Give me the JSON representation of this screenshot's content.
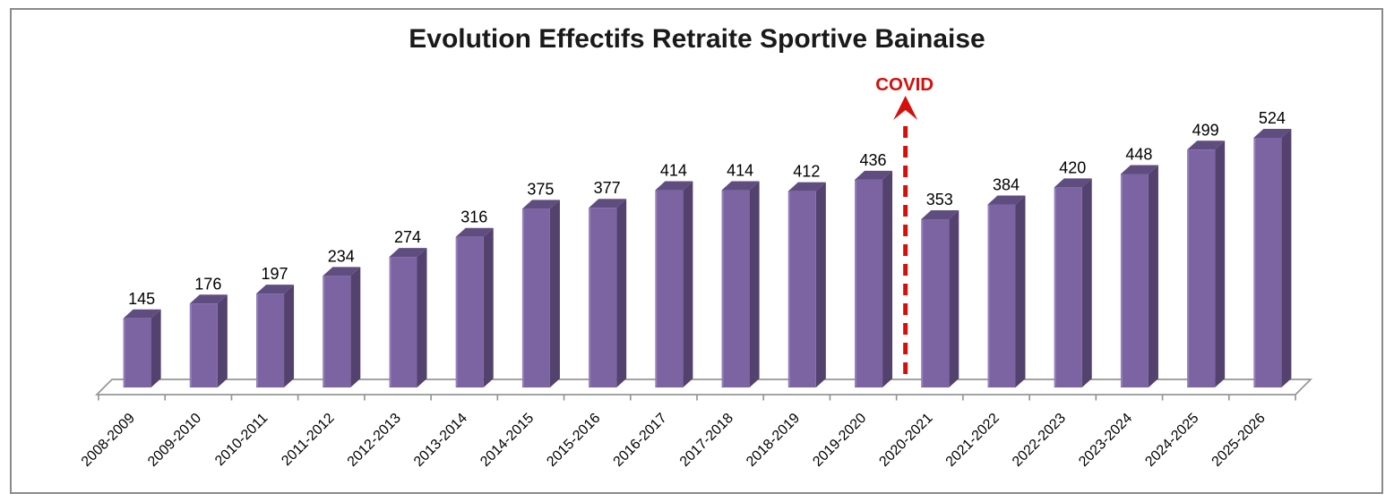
{
  "chart_data": {
    "type": "bar",
    "title": "Evolution Effectifs Retraite Sportive Bainaise",
    "categories": [
      "2008-2009",
      "2009-2010",
      "2010-2011",
      "2011-2012",
      "2012-2013",
      "2013-2014",
      "2014-2015",
      "2015-2016",
      "2016-2017",
      "2017-2018",
      "2018-2019",
      "2019-2020",
      "2020-2021",
      "2021-2022",
      "2022-2023",
      "2023-2024",
      "2024-2025",
      "2025-2026"
    ],
    "values": [
      145,
      176,
      197,
      234,
      274,
      316,
      375,
      377,
      414,
      414,
      412,
      436,
      353,
      384,
      420,
      448,
      499,
      524
    ],
    "xlabel": "",
    "ylabel": "",
    "legend_position": "none",
    "gridlines": "off",
    "y_axis": "hidden",
    "data_labels": "above-bars",
    "bar_style": "3d-box",
    "x_tick_label_rotation_deg": 45,
    "annotation": {
      "label": "COVID",
      "position_after_category": "2019-2020",
      "arrow": "vertical-dashed-pointing-up",
      "color": "#d40f0c"
    },
    "colors": {
      "bar_front": "#7c64a3",
      "bar_top": "#604d80",
      "bar_side": "#53426d",
      "bar_highlight": "#9c8ac2",
      "axis": "#969696",
      "label_text": "#000000",
      "title_text": "#1a1a1a",
      "frame_border": "#8a8a8a"
    }
  }
}
